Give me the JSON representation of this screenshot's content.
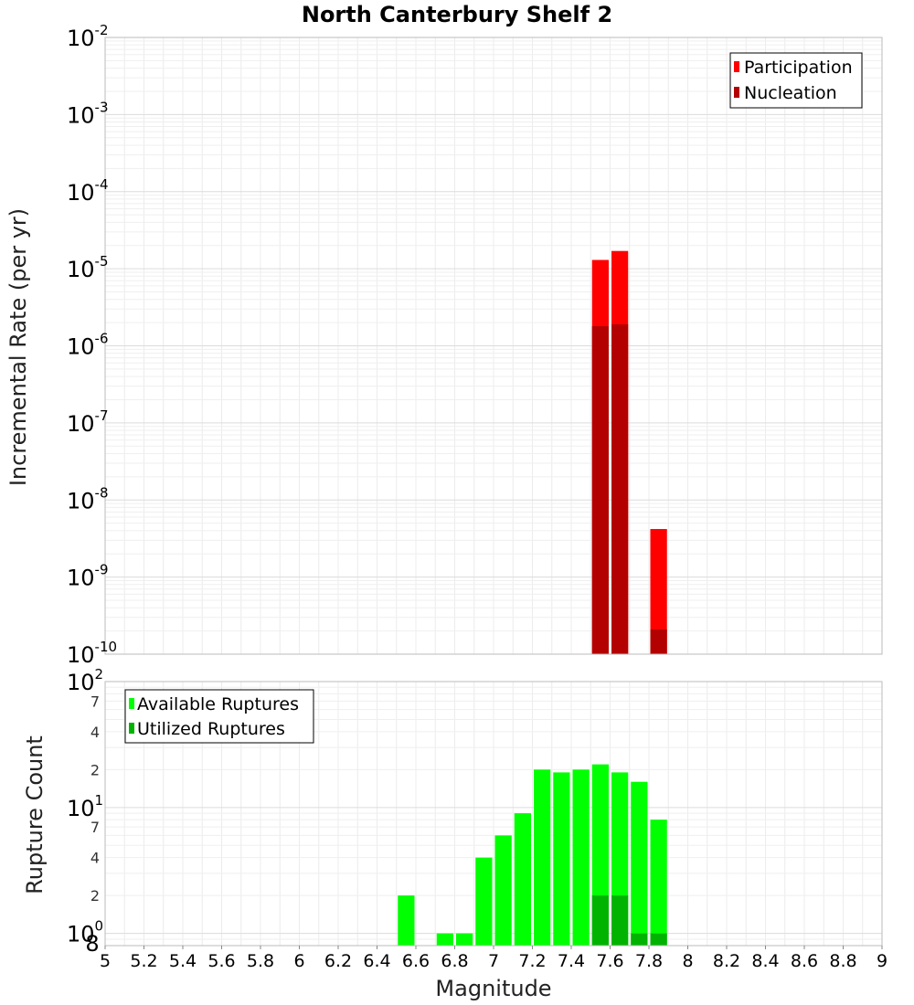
{
  "chart_data": [
    {
      "type": "bar",
      "title": "North Canterbury Shelf 2",
      "xlabel": "",
      "ylabel": "Incremental Rate (per yr)",
      "yscale": "log",
      "ylim": [
        1e-10,
        0.01
      ],
      "xlim": [
        5,
        9
      ],
      "y_tick_labels": [
        {
          "value": 0.01,
          "base": "10",
          "exp": "-2"
        },
        {
          "value": 0.001,
          "base": "10",
          "exp": "-3"
        },
        {
          "value": 0.0001,
          "base": "10",
          "exp": "-4"
        },
        {
          "value": 1e-05,
          "base": "10",
          "exp": "-5"
        },
        {
          "value": 1e-06,
          "base": "10",
          "exp": "-6"
        },
        {
          "value": 1e-07,
          "base": "10",
          "exp": "-7"
        },
        {
          "value": 1e-08,
          "base": "10",
          "exp": "-8"
        },
        {
          "value": 1e-09,
          "base": "10",
          "exp": "-9"
        },
        {
          "value": 1e-10,
          "base": "10",
          "exp": "-10"
        }
      ],
      "legend": {
        "position": "top-right",
        "entries": [
          "Participation",
          "Nucleation"
        ]
      },
      "series": [
        {
          "name": "Participation",
          "color": "#ff0000",
          "points": [
            {
              "x": 7.55,
              "y": 1.3e-05
            },
            {
              "x": 7.65,
              "y": 1.7e-05
            },
            {
              "x": 7.85,
              "y": 4.2e-09
            }
          ]
        },
        {
          "name": "Nucleation",
          "color": "#b30000",
          "points": [
            {
              "x": 7.55,
              "y": 1.8e-06
            },
            {
              "x": 7.65,
              "y": 1.9e-06
            },
            {
              "x": 7.85,
              "y": 2.1e-10
            }
          ]
        }
      ]
    },
    {
      "type": "bar",
      "xlabel": "Magnitude",
      "ylabel": "Rupture Count",
      "yscale": "log",
      "ylim": [
        0.8,
        100
      ],
      "xlim": [
        5,
        9
      ],
      "x_tick_labels": [
        "5",
        "5.2",
        "5.4",
        "5.6",
        "5.8",
        "6",
        "6.2",
        "6.4",
        "6.6",
        "6.8",
        "7",
        "7.2",
        "7.4",
        "7.6",
        "7.8",
        "8",
        "8.2",
        "8.4",
        "8.6",
        "8.8",
        "9"
      ],
      "y_tick_labels": [
        {
          "value": 100,
          "base": "10",
          "exp": "2"
        },
        {
          "value": 10,
          "base": "10",
          "exp": "1"
        },
        {
          "value": 1,
          "base": "10",
          "exp": "0"
        }
      ],
      "y_minor_labels": [
        {
          "value": 70,
          "label": "7"
        },
        {
          "value": 40,
          "label": "4"
        },
        {
          "value": 20,
          "label": "2"
        },
        {
          "value": 7,
          "label": "7"
        },
        {
          "value": 4,
          "label": "4"
        },
        {
          "value": 2,
          "label": "2"
        },
        {
          "value": 0.8,
          "label": "8"
        }
      ],
      "legend": {
        "position": "top-left",
        "entries": [
          "Available Ruptures",
          "Utilized Ruptures"
        ]
      },
      "series": [
        {
          "name": "Available Ruptures",
          "color": "#00ff00",
          "points": [
            {
              "x": 6.55,
              "y": 2
            },
            {
              "x": 6.75,
              "y": 1
            },
            {
              "x": 6.85,
              "y": 1
            },
            {
              "x": 6.95,
              "y": 4
            },
            {
              "x": 7.05,
              "y": 6
            },
            {
              "x": 7.15,
              "y": 9
            },
            {
              "x": 7.25,
              "y": 20
            },
            {
              "x": 7.35,
              "y": 19
            },
            {
              "x": 7.45,
              "y": 20
            },
            {
              "x": 7.55,
              "y": 22
            },
            {
              "x": 7.65,
              "y": 19
            },
            {
              "x": 7.75,
              "y": 16
            },
            {
              "x": 7.85,
              "y": 8
            }
          ]
        },
        {
          "name": "Utilized Ruptures",
          "color": "#00b300",
          "points": [
            {
              "x": 7.55,
              "y": 2
            },
            {
              "x": 7.65,
              "y": 2
            },
            {
              "x": 7.75,
              "y": 1
            },
            {
              "x": 7.85,
              "y": 1
            }
          ]
        }
      ]
    }
  ]
}
